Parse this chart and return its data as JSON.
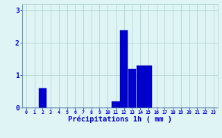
{
  "hours": [
    0,
    1,
    2,
    3,
    4,
    5,
    6,
    7,
    8,
    9,
    10,
    11,
    12,
    13,
    14,
    15,
    16,
    17,
    18,
    19,
    20,
    21,
    22,
    23
  ],
  "values": [
    0,
    0,
    0.6,
    0,
    0,
    0,
    0,
    0,
    0,
    0,
    0,
    0.2,
    2.4,
    1.2,
    1.3,
    1.3,
    0,
    0,
    0,
    0,
    0,
    0,
    0,
    0
  ],
  "bar_color": "#0000cc",
  "bar_edge_color": "#0000aa",
  "background_color": "#dff4f4",
  "grid_color": "#aacfcf",
  "xlabel": "Précipitations 1h ( mm )",
  "xlabel_color": "#0000cc",
  "tick_color": "#0000cc",
  "ylim": [
    0,
    3.2
  ],
  "yticks": [
    0,
    1,
    2,
    3
  ],
  "xtick_labels": [
    "0",
    "1",
    "2",
    "3",
    "4",
    "5",
    "6",
    "7",
    "8",
    "9",
    "10",
    "11",
    "12",
    "13",
    "14",
    "15",
    "16",
    "17",
    "18",
    "19",
    "20",
    "21",
    "22",
    "23"
  ]
}
